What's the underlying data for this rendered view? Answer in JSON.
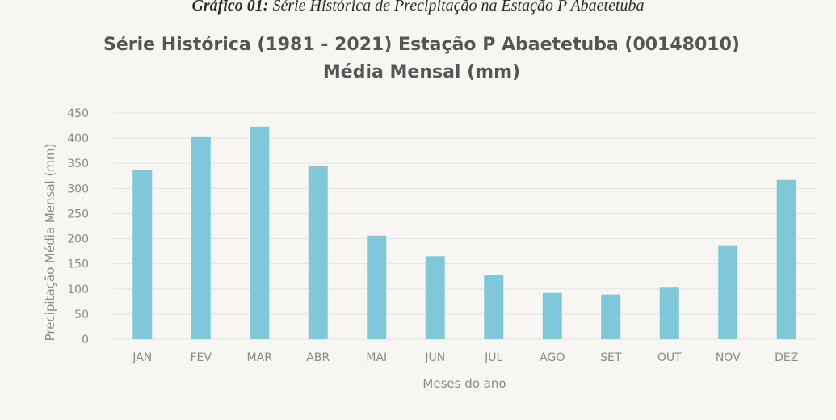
{
  "caption": {
    "bold": "Gráfico 01:",
    "text": " Série Histórica de Precipitação na Estação P Abaetetuba"
  },
  "chart_data": {
    "type": "bar",
    "title": "Série Histórica (1981 - 2021) Estação P Abaetetuba (00148010)",
    "subtitle": "Média Mensal (mm)",
    "xlabel": "Meses do ano",
    "ylabel": "Precipitação Média Mensal (mm)",
    "categories": [
      "JAN",
      "FEV",
      "MAR",
      "ABR",
      "MAI",
      "JUN",
      "JUL",
      "AGO",
      "SET",
      "OUT",
      "NOV",
      "DEZ"
    ],
    "values": [
      337,
      402,
      423,
      344,
      206,
      165,
      128,
      92,
      89,
      104,
      187,
      317
    ],
    "ylim": [
      0,
      450
    ],
    "yticks": [
      0,
      50,
      100,
      150,
      200,
      250,
      300,
      350,
      400,
      450
    ],
    "grid": true,
    "legend": "none",
    "bar_color": "#7ec8da"
  }
}
